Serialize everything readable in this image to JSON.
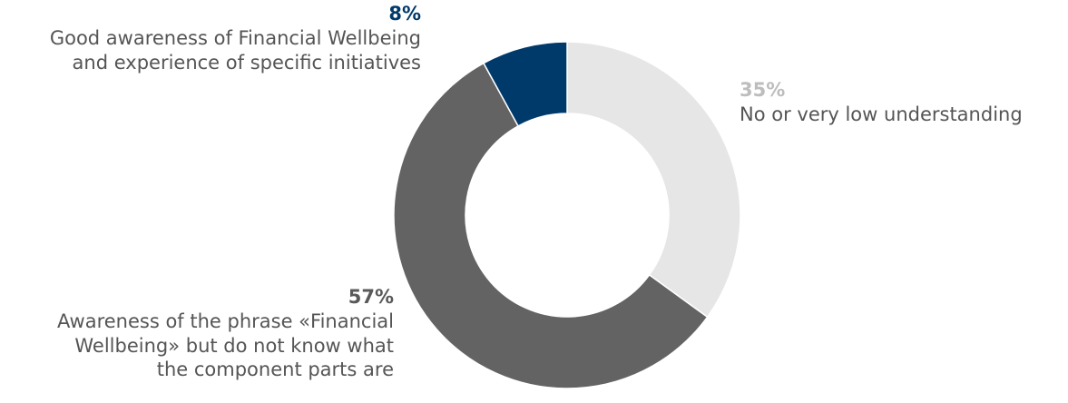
{
  "chart_data": {
    "type": "pie",
    "donut": true,
    "slices": [
      {
        "label": "No or very low understanding",
        "pct_label": "35%",
        "value": 35,
        "color": "#e6e6e6"
      },
      {
        "label": "Awareness of the phrase «Financial Wellbeing» but do not know what the component parts are",
        "pct_label": "57%",
        "value": 57,
        "color": "#636363"
      },
      {
        "label": "Good awareness of Financial Wellbeing and experience of specific initiatives",
        "pct_label": "8%",
        "value": 8,
        "color": "#003a6b"
      }
    ]
  },
  "labels": {
    "good": {
      "pct": "8%",
      "lines": [
        "Good awareness of Financial Wellbeing",
        "and experience of specific initiatives"
      ],
      "color": "#003a6b"
    },
    "none": {
      "pct": "35%",
      "lines": [
        "No or very low understanding"
      ],
      "color": "#bdbdbd"
    },
    "aware": {
      "pct": "57%",
      "lines": [
        "Awareness of the phrase «Financial",
        "Wellbeing» but do not know what",
        "the component parts are"
      ],
      "color": "#595959"
    }
  }
}
